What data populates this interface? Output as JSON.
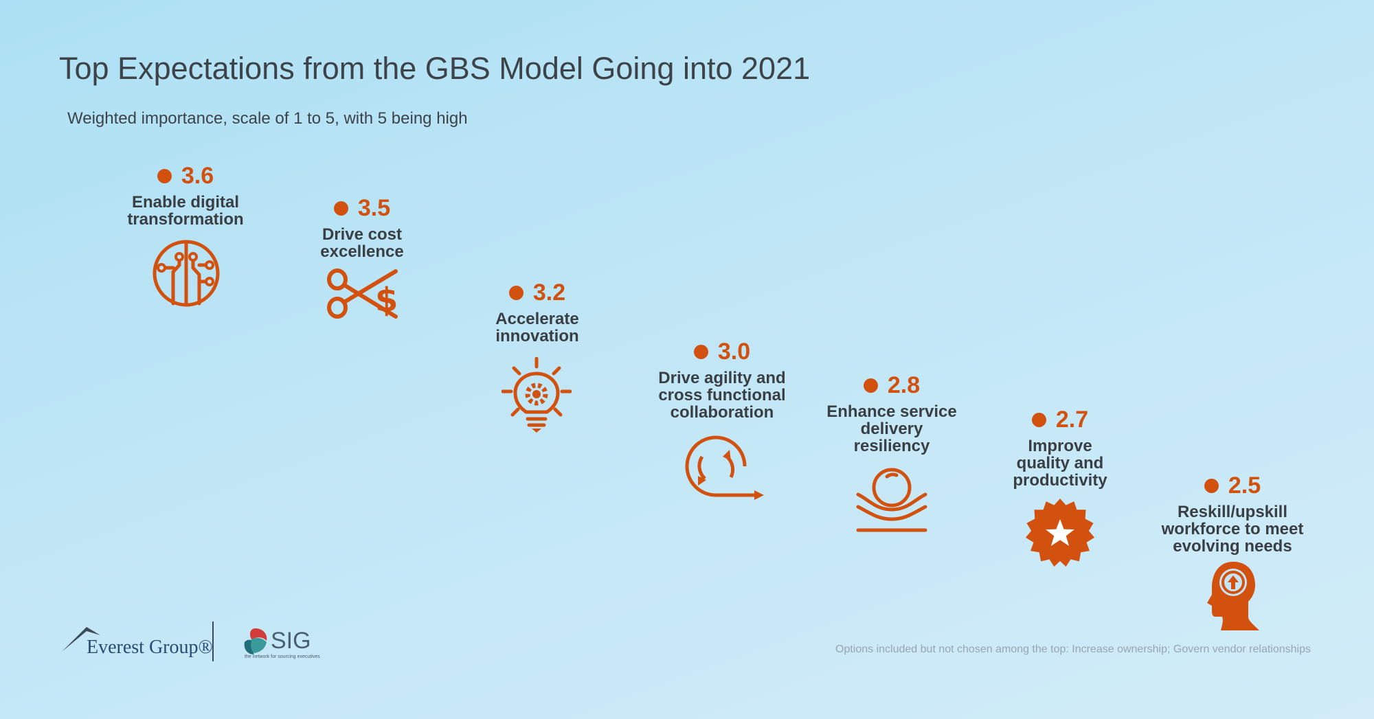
{
  "title": "Top Expectations from the GBS Model Going into 2021",
  "subtitle": "Weighted importance, scale of 1 to 5, with 5 being high",
  "chart_data": {
    "type": "scatter",
    "title": "Top Expectations from the GBS Model Going into 2021",
    "subtitle": "Weighted importance, scale of 1 to 5, with 5 being high",
    "categories": [
      "Enable digital transformation",
      "Drive cost excellence",
      "Accelerate innovation",
      "Drive agility and cross functional collaboration",
      "Enhance service delivery resiliency",
      "Improve quality and productivity",
      "Reskill/upskill workforce to meet evolving needs"
    ],
    "values": [
      3.6,
      3.5,
      3.2,
      3.0,
      2.8,
      2.7,
      2.5
    ],
    "series": [
      {
        "values": [
          3.6,
          3.5,
          3.2,
          3.0,
          2.8,
          2.7,
          2.5
        ],
        "color": "#d2510f"
      }
    ]
  },
  "items": [
    {
      "value": "3.6",
      "label": "Enable digital\ntransformation",
      "icon": "circuit-icon"
    },
    {
      "value": "3.5",
      "label": "Drive cost\nexcellence",
      "icon": "scissors-dollar-icon"
    },
    {
      "value": "3.2",
      "label": "Accelerate\ninnovation",
      "icon": "lightbulb-gear-icon"
    },
    {
      "value": "3.0",
      "label": "Drive agility and\ncross functional\ncollaboration",
      "icon": "cycle-arrow-icon"
    },
    {
      "value": "2.8",
      "label": "Enhance service\ndelivery\nresiliency",
      "icon": "ball-cushion-icon"
    },
    {
      "value": "2.7",
      "label": "Improve\nquality and\nproductivity",
      "icon": "star-badge-icon"
    },
    {
      "value": "2.5",
      "label": "Reskill/upskill\nworkforce to meet\nevolving needs",
      "icon": "head-upgrade-icon"
    }
  ],
  "colors": {
    "accent": "#d2510f",
    "text": "#3a3f44",
    "background_top": "#ade0f4",
    "background_bottom": "#d2ecf9"
  },
  "logos": {
    "everest": "Everest Group®",
    "sig": "SIG",
    "sig_tagline": "the network for sourcing executives"
  },
  "footnote": "Options included but not chosen among the top: Increase ownership; Govern vendor relationships"
}
